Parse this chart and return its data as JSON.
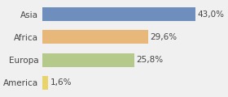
{
  "categories": [
    "Asia",
    "Africa",
    "Europa",
    "America"
  ],
  "values": [
    43.0,
    29.6,
    25.8,
    1.6
  ],
  "labels": [
    "43,0%",
    "29,6%",
    "25,8%",
    "1,6%"
  ],
  "bar_colors": [
    "#6e8fbe",
    "#e8b87a",
    "#b5c98a",
    "#e8d46a"
  ],
  "background_color": "#f0f0f0",
  "xlim": [
    0,
    50
  ],
  "label_fontsize": 7.5,
  "tick_fontsize": 7.5
}
